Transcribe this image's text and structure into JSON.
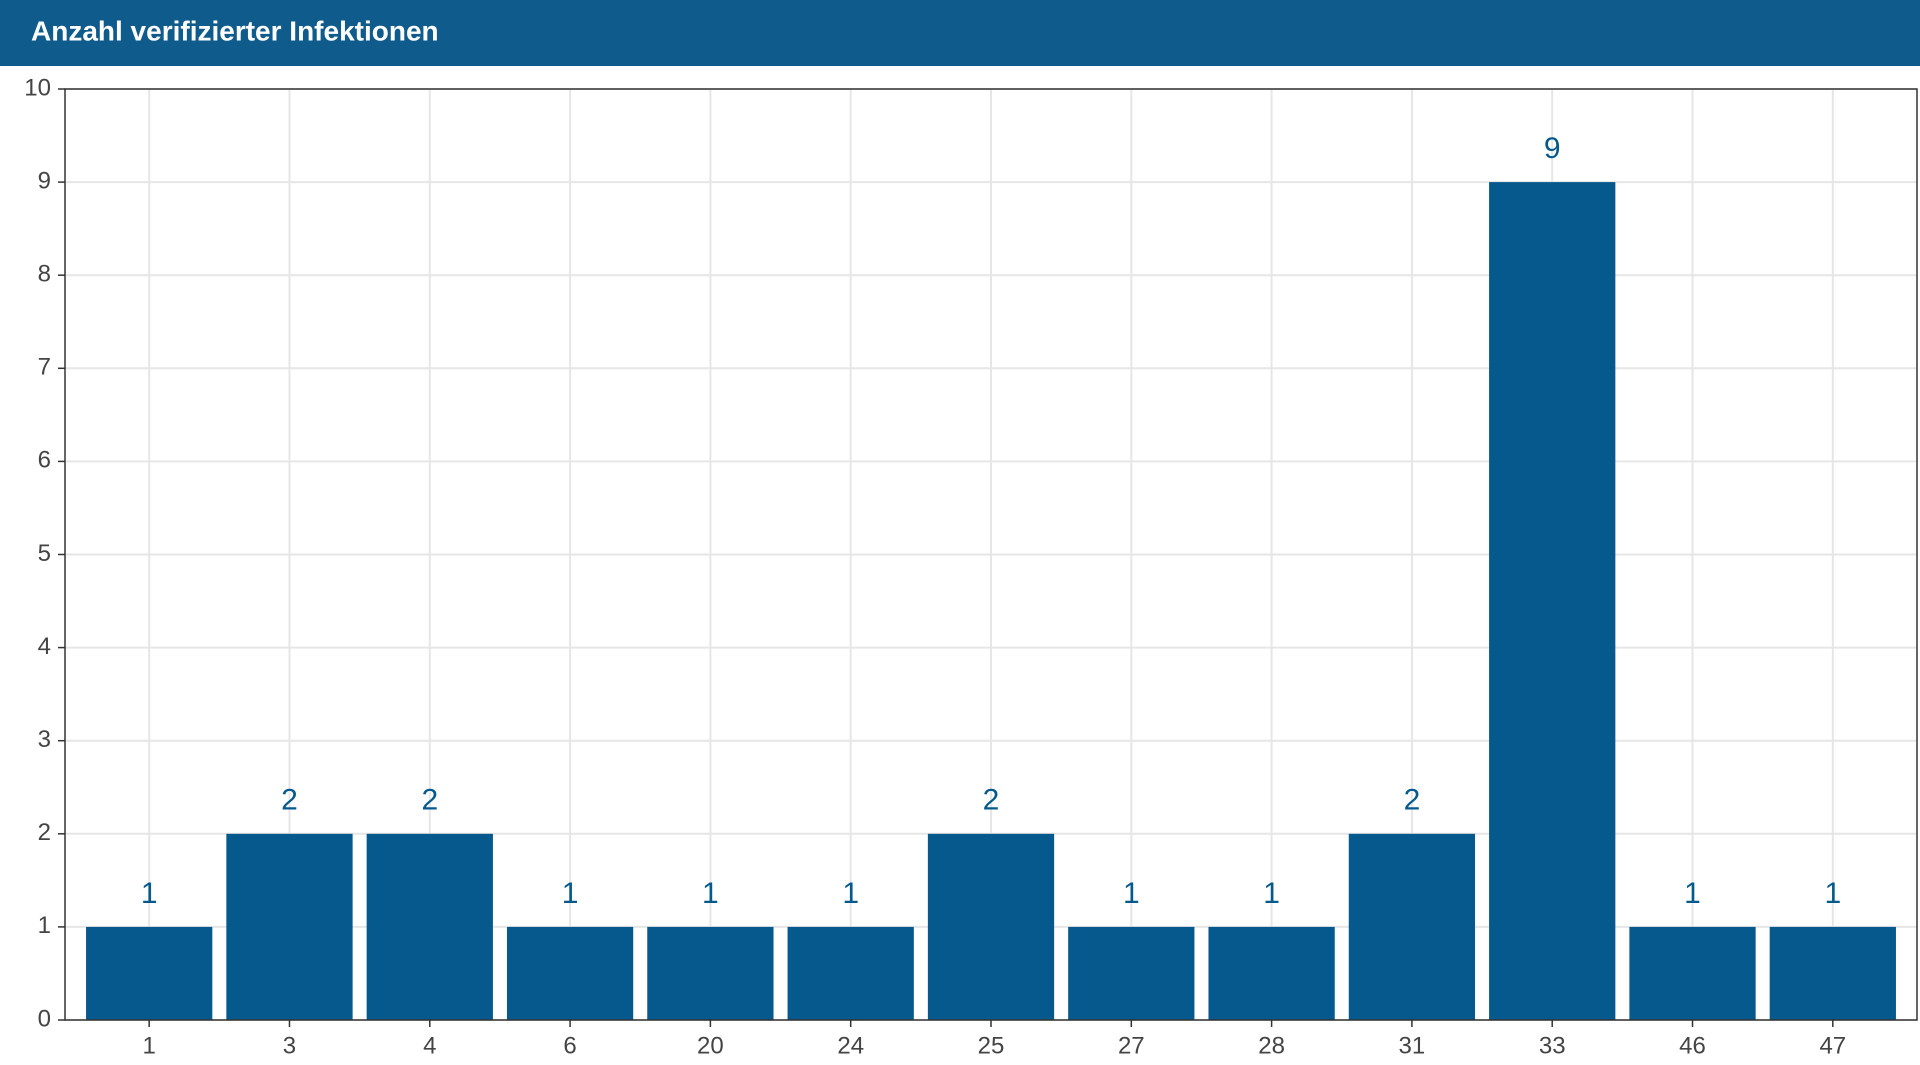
{
  "chart_data": {
    "type": "bar",
    "title": "Anzahl verifizierter Infektionen",
    "categories": [
      "1",
      "3",
      "4",
      "6",
      "20",
      "24",
      "25",
      "27",
      "28",
      "31",
      "33",
      "46",
      "47"
    ],
    "values": [
      1,
      2,
      2,
      1,
      1,
      1,
      2,
      1,
      1,
      2,
      9,
      1,
      1
    ],
    "color": "#05598c",
    "ylim": [
      0,
      10
    ],
    "yticks": [
      0,
      1,
      2,
      3,
      4,
      5,
      6,
      7,
      8,
      9,
      10
    ],
    "grid": true
  }
}
